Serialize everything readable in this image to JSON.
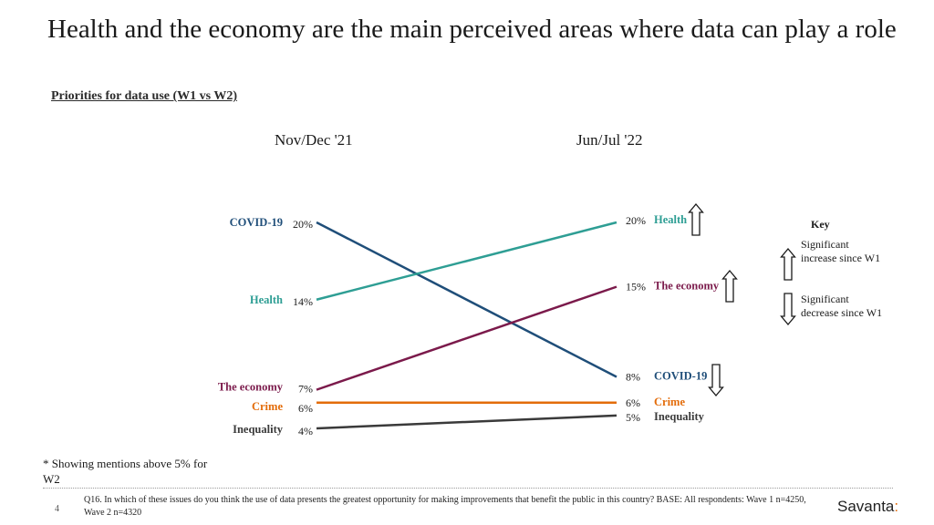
{
  "title": "Health and the economy are the main perceived areas where data can play a role",
  "subtitle": "Priorities for data use (W1 vs W2)",
  "columns": [
    "Nov/Dec '21",
    "Jun/Jul '22"
  ],
  "chart_data": {
    "type": "line",
    "title": "Priorities for data use (W1 vs W2)",
    "categories": [
      "Nov/Dec '21",
      "Jun/Jul '22"
    ],
    "ylim": [
      0,
      25
    ],
    "series": [
      {
        "name": "COVID-19",
        "values": [
          20,
          8
        ],
        "value_labels": [
          "20%",
          "8%"
        ],
        "color": "#1f4e79",
        "change": "decrease"
      },
      {
        "name": "Health",
        "values": [
          14,
          20
        ],
        "value_labels": [
          "14%",
          "20%"
        ],
        "color": "#2e9e94",
        "change": "increase"
      },
      {
        "name": "The economy",
        "values": [
          7,
          15
        ],
        "value_labels": [
          "7%",
          "15%"
        ],
        "color": "#7b1a4b",
        "change": "increase"
      },
      {
        "name": "Crime",
        "values": [
          6,
          6
        ],
        "value_labels": [
          "6%",
          "6%"
        ],
        "color": "#e36c0a",
        "change": "none"
      },
      {
        "name": "Inequality",
        "values": [
          4,
          5
        ],
        "value_labels": [
          "4%",
          "5%"
        ],
        "color": "#3a3a3a",
        "change": "none"
      }
    ]
  },
  "key": {
    "title": "Key",
    "increase_label": "Significant increase since W1",
    "decrease_label": "Significant decrease since W1"
  },
  "note": "* Showing mentions above 5%  for W2",
  "page_number": "4",
  "footnote": "Q16. In which of these issues do you think the use of data presents the greatest opportunity for making improvements that benefit the public in this country? BASE: All respondents: Wave 1 n=4250, Wave 2 n=4320",
  "logo": {
    "text": "Savanta",
    "mark": ":"
  }
}
